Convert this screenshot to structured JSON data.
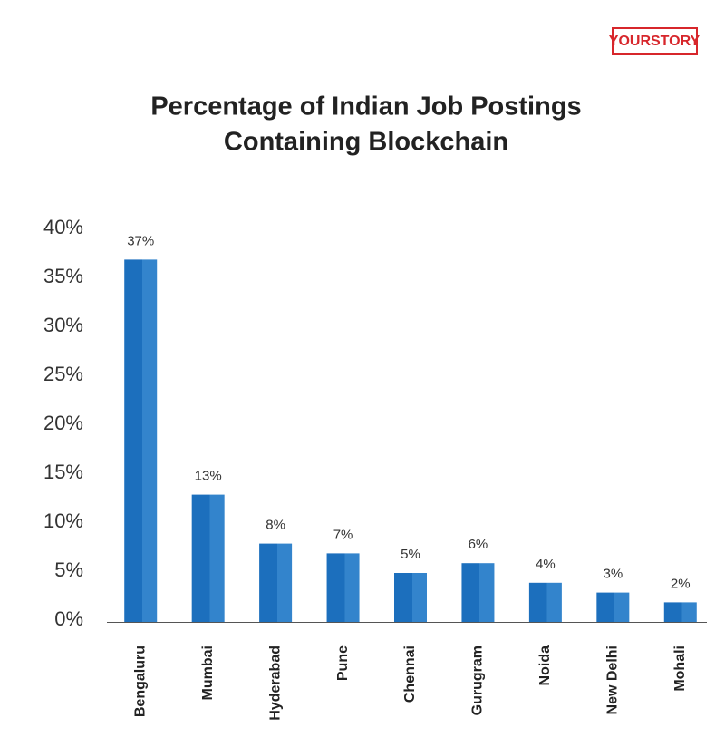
{
  "logo": "YOURSTORY",
  "chart_data": {
    "type": "bar",
    "title_lines": [
      "Percentage of Indian Job Postings",
      "Containing Blockchain"
    ],
    "categories": [
      "Bengaluru",
      "Mumbai",
      "Hyderabad",
      "Pune",
      "Chennai",
      "Gurugram",
      "Noida",
      "New Delhi",
      "Mohali"
    ],
    "values": [
      37,
      13,
      8,
      7,
      5,
      6,
      4,
      3,
      2
    ],
    "value_labels": [
      "37%",
      "13%",
      "8%",
      "7%",
      "5%",
      "6%",
      "4%",
      "3%",
      "2%"
    ],
    "color": "#1f72bf",
    "ylim": [
      0,
      40
    ],
    "yticks": [
      {
        "value": 0,
        "label": "0%"
      },
      {
        "value": 5,
        "label": "5%"
      },
      {
        "value": 10,
        "label": "10%"
      },
      {
        "value": 15,
        "label": "15%"
      },
      {
        "value": 20,
        "label": "20%"
      },
      {
        "value": 25,
        "label": "25%"
      },
      {
        "value": 30,
        "label": "30%"
      },
      {
        "value": 35,
        "label": "35%"
      },
      {
        "value": 40,
        "label": "40%"
      }
    ],
    "grid": false
  }
}
